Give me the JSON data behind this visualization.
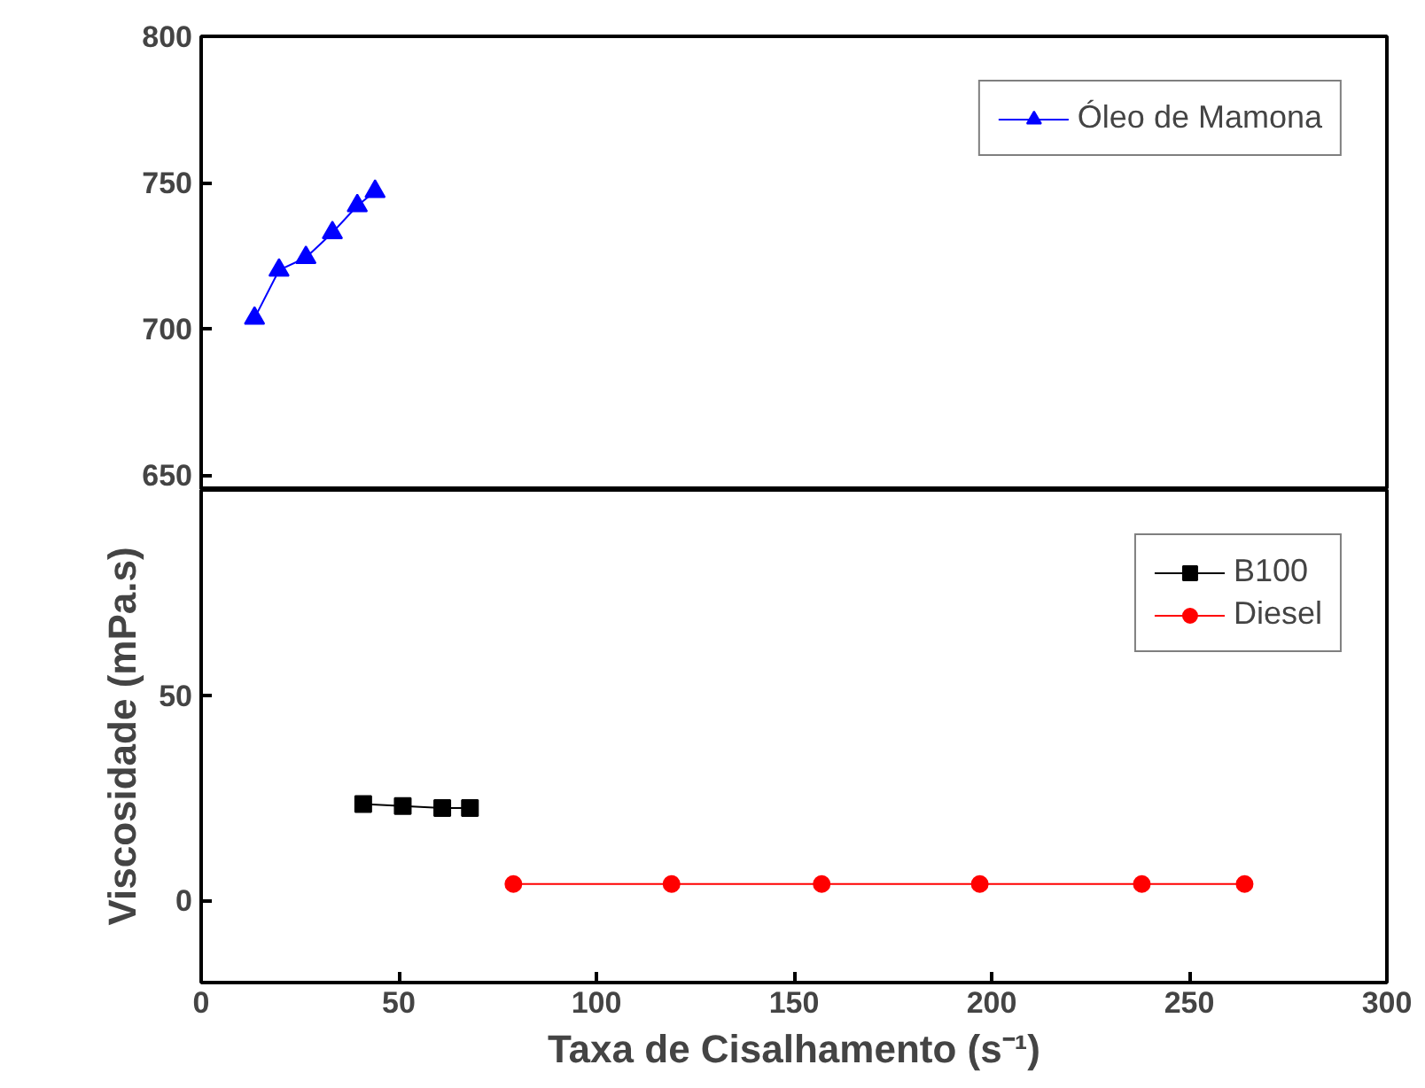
{
  "chart_data": [
    {
      "type": "line",
      "xlim": [
        0,
        300
      ],
      "xticks": [
        0,
        50,
        100,
        150,
        200,
        250,
        300
      ],
      "ylim": [
        645,
        800
      ],
      "yticks": [
        650,
        700,
        750,
        800
      ],
      "tick_labels": "y",
      "grid": false,
      "legend": "top right",
      "line_style": "solid",
      "series": [
        {
          "name": "Óleo de Mamona",
          "color": "#0000ff",
          "marker": "triangle",
          "x": [
            13.5,
            19.7,
            26.5,
            33.2,
            39.5,
            44
          ],
          "values": [
            703.7,
            720.1,
            724.4,
            732.9,
            742.1,
            747
          ]
        }
      ]
    },
    {
      "type": "line",
      "xlabel": "Taxa de Cisalhamento (s⁻¹)",
      "ylabel": "Viscosidade (mPa.s)",
      "xlim": [
        0,
        300
      ],
      "xticks": [
        0,
        50,
        100,
        150,
        200,
        250,
        300
      ],
      "ylim": [
        -20,
        100
      ],
      "yticks": [
        0,
        50
      ],
      "grid": false,
      "legend": "top right",
      "line_style": "solid",
      "series": [
        {
          "name": "B100",
          "color": "#000000",
          "marker": "square",
          "x": [
            41,
            51,
            61,
            68
          ],
          "values": [
            23.5,
            23,
            22.5,
            22.5
          ]
        },
        {
          "name": "Diesel",
          "color": "#ff0000",
          "marker": "circle",
          "x": [
            79,
            119,
            157,
            197,
            238,
            264
          ],
          "values": [
            4,
            4,
            4,
            4,
            4,
            4
          ]
        }
      ]
    }
  ]
}
